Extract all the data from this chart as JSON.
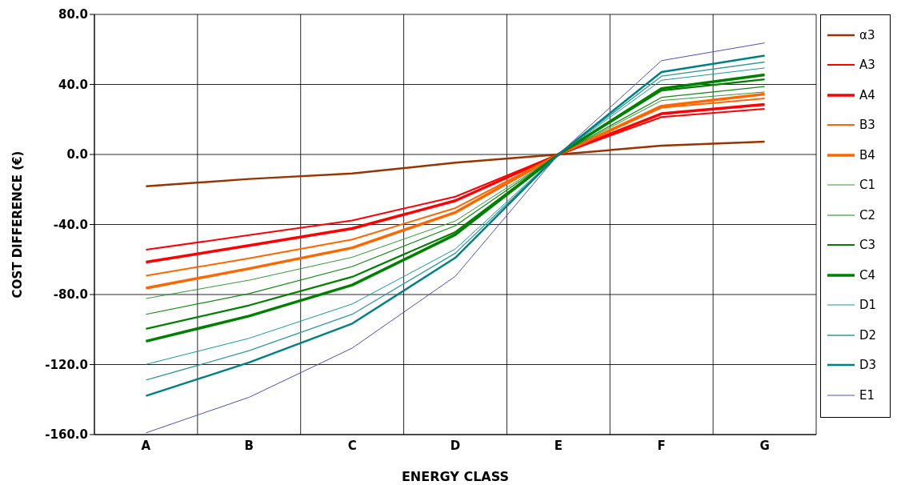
{
  "chart_data": {
    "type": "line",
    "xlabel": "ENERGY CLASS",
    "ylabel": "COST DIFFERENCE  (€)",
    "categories": [
      "A",
      "B",
      "C",
      "D",
      "E",
      "F",
      "G"
    ],
    "ylim": [
      -160,
      80
    ],
    "yticks": [
      {
        "value": -160,
        "label": "-160.0"
      },
      {
        "value": -120,
        "label": "-120.0"
      },
      {
        "value": -80,
        "label": "-80.0"
      },
      {
        "value": -40,
        "label": "-40.0"
      },
      {
        "value": 0,
        "label": "0.0"
      },
      {
        "value": 40,
        "label": "40.0"
      },
      {
        "value": 80,
        "label": "80.0"
      }
    ],
    "grid": true,
    "legend": "right",
    "marker": "none",
    "line_style": "solid",
    "series": [
      {
        "name": "α3",
        "color": "#993300",
        "values": [
          -18.2,
          -14,
          -10.9,
          -4.7,
          0,
          5.0,
          7.3
        ]
      },
      {
        "name": "A3",
        "color": "#ff0000",
        "values": [
          -54.4,
          -46.1,
          -37.7,
          -24.1,
          0,
          21.4,
          26.1
        ]
      },
      {
        "name": "A4",
        "color": "#ff0000",
        "values": [
          -61.5,
          -52,
          -42.3,
          -26.4,
          0,
          23.3,
          28.6
        ]
      },
      {
        "name": "B3",
        "color": "#ff6600",
        "values": [
          -69.3,
          -59.3,
          -48.6,
          -30.6,
          0,
          26.7,
          32
        ]
      },
      {
        "name": "B4",
        "color": "#ff6600",
        "values": [
          -76.3,
          -65.2,
          -53.3,
          -33.1,
          0,
          27.6,
          34.5
        ]
      },
      {
        "name": "C1",
        "color": "#339933",
        "values": [
          -82.3,
          -71.8,
          -58.7,
          -38,
          0,
          30.8,
          35.7
        ]
      },
      {
        "name": "C2",
        "color": "#108a10",
        "values": [
          -91.3,
          -79.5,
          -64,
          -40.7,
          0,
          32.6,
          38.8
        ]
      },
      {
        "name": "C3",
        "color": "#008000",
        "values": [
          -99.6,
          -86.2,
          -69.9,
          -44.3,
          0,
          36.5,
          42.9
        ]
      },
      {
        "name": "C4",
        "color": "#008000",
        "values": [
          -106.7,
          -92.3,
          -74.6,
          -45.8,
          0,
          37.6,
          45.5
        ]
      },
      {
        "name": "D1",
        "color": "#1a9999",
        "values": [
          -119.9,
          -105,
          -85.4,
          -54,
          0,
          42.4,
          49.4
        ]
      },
      {
        "name": "D2",
        "color": "#339999",
        "values": [
          -128.9,
          -112.1,
          -91.3,
          -56.4,
          0,
          44.7,
          52.8
        ]
      },
      {
        "name": "D3",
        "color": "#008080",
        "values": [
          -137.9,
          -118.8,
          -96.6,
          -59,
          0,
          47.1,
          56.5
        ]
      },
      {
        "name": "E1",
        "color": "#5050b8",
        "values": [
          -159,
          -138.7,
          -110.6,
          -69.6,
          0,
          53.6,
          63.7
        ]
      }
    ]
  }
}
